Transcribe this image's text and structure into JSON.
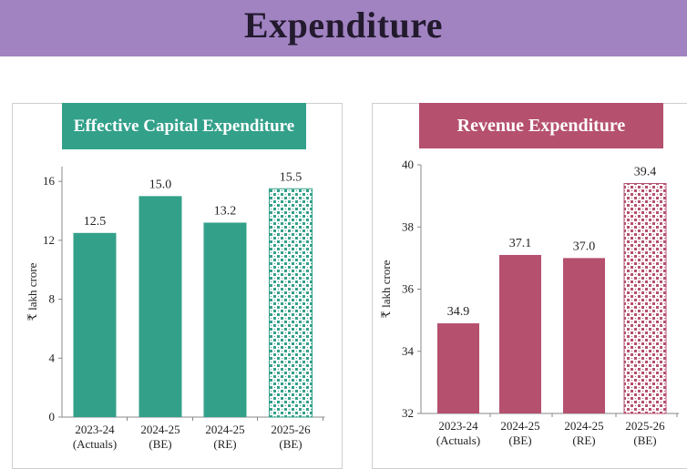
{
  "page": {
    "title": "Expenditure"
  },
  "colors": {
    "banner": "#a183c2",
    "title_text": "#231a2e",
    "capital": "#33a08a",
    "revenue": "#b5506f"
  },
  "chart_data": [
    {
      "type": "bar",
      "title": "Effective Capital Expenditure",
      "ylabel": "₹ lakh crore",
      "xlabel": "",
      "categories": [
        "2023-24",
        "2024-25",
        "2024-25",
        "2025-26"
      ],
      "category_sublabels": [
        "(Actuals)",
        "(BE)",
        "(RE)",
        "(BE)"
      ],
      "values": [
        12.5,
        15.0,
        13.2,
        15.5
      ],
      "value_labels": [
        "12.5",
        "15.0",
        "13.2",
        "15.5"
      ],
      "ylim": [
        0,
        17
      ],
      "yticks": [
        0,
        4,
        8,
        12,
        16
      ],
      "patterned_last_bar": true,
      "grid": false,
      "color": "#33a08a"
    },
    {
      "type": "bar",
      "title": "Revenue Expenditure",
      "ylabel": "₹ lakh crore",
      "xlabel": "",
      "categories": [
        "2023-24",
        "2024-25",
        "2024-25",
        "2025-26"
      ],
      "category_sublabels": [
        "(Actuals)",
        "(BE)",
        "(RE)",
        "(BE)"
      ],
      "values": [
        34.9,
        37.1,
        37.0,
        39.4
      ],
      "value_labels": [
        "34.9",
        "37.1",
        "37.0",
        "39.4"
      ],
      "ylim": [
        32,
        40
      ],
      "yticks": [
        32,
        34,
        36,
        38,
        40
      ],
      "patterned_last_bar": true,
      "grid": false,
      "color": "#b5506f"
    }
  ]
}
